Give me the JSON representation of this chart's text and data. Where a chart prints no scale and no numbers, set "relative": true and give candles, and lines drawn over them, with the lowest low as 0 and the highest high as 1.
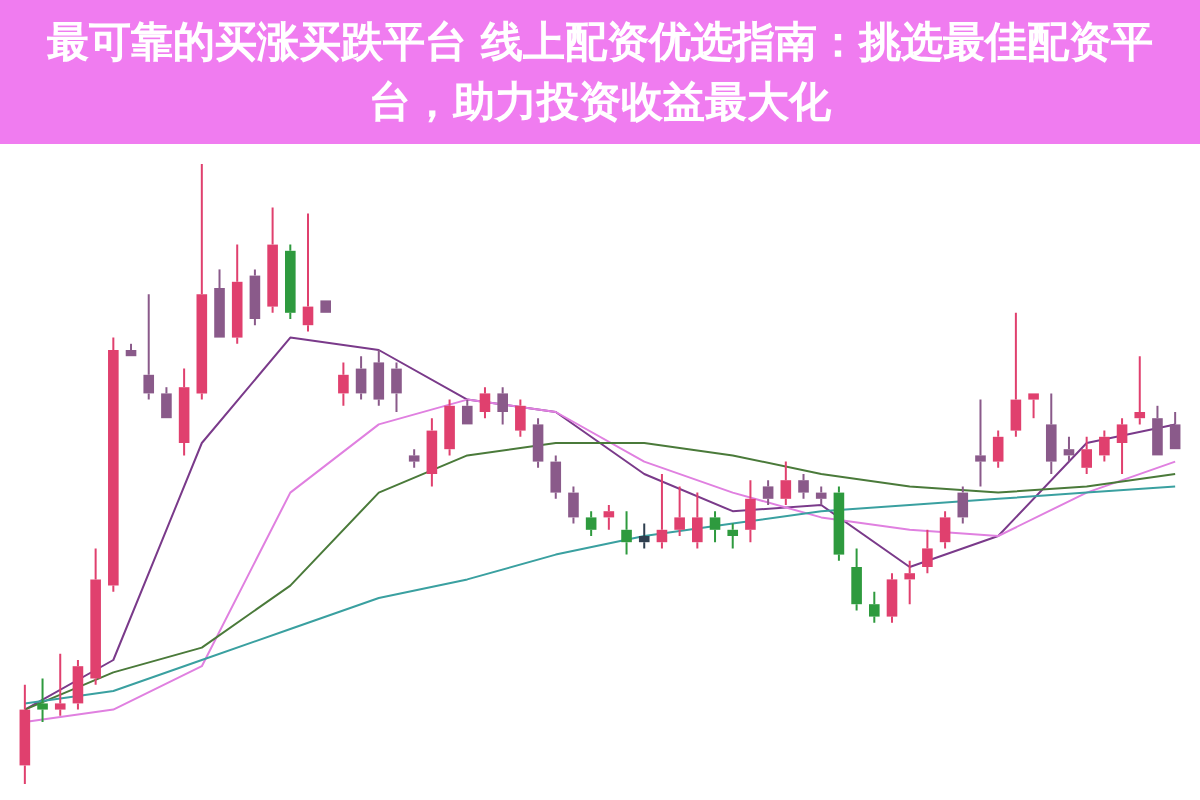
{
  "chart_data": {
    "type": "candlestick",
    "title": "最可靠的买涨买跌平台 线上配资优选指南：挑选最佳配资平台，助力投资收益最大化",
    "relative": true,
    "categories": [
      null,
      null,
      null,
      null,
      null,
      null,
      null,
      null,
      null,
      null,
      null,
      null,
      null,
      null,
      null,
      null,
      null,
      null,
      null,
      null,
      null,
      null,
      null,
      null,
      null,
      null,
      null,
      null,
      null,
      null,
      null,
      null,
      null,
      null,
      null,
      null,
      null,
      null,
      null,
      null,
      null,
      null,
      null,
      null,
      null,
      null,
      null,
      null,
      null,
      null,
      null,
      null,
      null,
      null,
      null,
      null,
      null,
      null,
      null,
      null,
      null,
      null,
      null,
      null,
      null,
      null
    ],
    "ohlc": [
      [
        0.03,
        0.16,
        0,
        0.12
      ],
      [
        0.13,
        0.17,
        0.1,
        0.12
      ],
      [
        0.12,
        0.21,
        0.11,
        0.13
      ],
      [
        0.13,
        0.2,
        0.12,
        0.19
      ],
      [
        0.17,
        0.38,
        0.16,
        0.33
      ],
      [
        0.32,
        0.72,
        0.31,
        0.7
      ],
      [
        0.7,
        0.71,
        0.69,
        0.69
      ],
      [
        0.66,
        0.79,
        0.62,
        0.63
      ],
      [
        0.63,
        0.64,
        0.59,
        0.59
      ],
      [
        0.55,
        0.67,
        0.53,
        0.64
      ],
      [
        0.63,
        1,
        0.62,
        0.79
      ],
      [
        0.8,
        0.83,
        0.72,
        0.72
      ],
      [
        0.72,
        0.87,
        0.71,
        0.81
      ],
      [
        0.82,
        0.83,
        0.74,
        0.75
      ],
      [
        0.77,
        0.93,
        0.76,
        0.87
      ],
      [
        0.86,
        0.87,
        0.75,
        0.76
      ],
      [
        0.74,
        0.92,
        0.73,
        0.77
      ],
      [
        0.78,
        0.78,
        0.76,
        0.76
      ],
      [
        0.63,
        0.68,
        0.61,
        0.66
      ],
      [
        0.67,
        0.69,
        0.62,
        0.63
      ],
      [
        0.68,
        0.7,
        0.61,
        0.62
      ],
      [
        0.67,
        0.68,
        0.6,
        0.63
      ],
      [
        0.53,
        0.54,
        0.51,
        0.52
      ],
      [
        0.5,
        0.59,
        0.48,
        0.57
      ],
      [
        0.54,
        0.62,
        0.53,
        0.61
      ],
      [
        0.61,
        0.62,
        0.58,
        0.58
      ],
      [
        0.6,
        0.64,
        0.59,
        0.63
      ],
      [
        0.63,
        0.64,
        0.58,
        0.6
      ],
      [
        0.57,
        0.62,
        0.56,
        0.61
      ],
      [
        0.58,
        0.59,
        0.51,
        0.52
      ],
      [
        0.52,
        0.53,
        0.46,
        0.47
      ],
      [
        0.47,
        0.48,
        0.42,
        0.43
      ],
      [
        0.43,
        0.44,
        0.4,
        0.41
      ],
      [
        0.43,
        0.45,
        0.41,
        0.44
      ],
      [
        0.41,
        0.44,
        0.37,
        0.39
      ],
      [
        0.4,
        0.42,
        0.38,
        0.39
      ],
      [
        0.39,
        0.5,
        0.38,
        0.41
      ],
      [
        0.41,
        0.48,
        0.4,
        0.43
      ],
      [
        0.39,
        0.47,
        0.38,
        0.43
      ],
      [
        0.43,
        0.44,
        0.39,
        0.41
      ],
      [
        0.41,
        0.42,
        0.38,
        0.4
      ],
      [
        0.41,
        0.49,
        0.39,
        0.46
      ],
      [
        0.48,
        0.49,
        0.45,
        0.46
      ],
      [
        0.46,
        0.52,
        0.45,
        0.49
      ],
      [
        0.49,
        0.5,
        0.46,
        0.47
      ],
      [
        0.47,
        0.48,
        0.45,
        0.46
      ],
      [
        0.47,
        0.48,
        0.36,
        0.37
      ],
      [
        0.35,
        0.38,
        0.28,
        0.29
      ],
      [
        0.29,
        0.31,
        0.26,
        0.27
      ],
      [
        0.27,
        0.34,
        0.26,
        0.33
      ],
      [
        0.33,
        0.36,
        0.29,
        0.34
      ],
      [
        0.35,
        0.41,
        0.34,
        0.38
      ],
      [
        0.39,
        0.44,
        0.38,
        0.43
      ],
      [
        0.47,
        0.48,
        0.42,
        0.43
      ],
      [
        0.53,
        0.62,
        0.48,
        0.52
      ],
      [
        0.52,
        0.57,
        0.51,
        0.56
      ],
      [
        0.57,
        0.76,
        0.56,
        0.62
      ],
      [
        0.62,
        0.63,
        0.59,
        0.63
      ],
      [
        0.58,
        0.63,
        0.5,
        0.52
      ],
      [
        0.54,
        0.56,
        0.52,
        0.53
      ],
      [
        0.51,
        0.56,
        0.5,
        0.54
      ],
      [
        0.53,
        0.57,
        0.52,
        0.56
      ],
      [
        0.55,
        0.59,
        0.5,
        0.58
      ],
      [
        0.59,
        0.69,
        0.58,
        0.6
      ],
      [
        0.59,
        0.61,
        0.53,
        0.53
      ],
      [
        0.58,
        0.6,
        0.54,
        0.54
      ]
    ],
    "colors": [
      "#e0406e",
      "#2e9a3e",
      "#e0406e",
      "#e0406e",
      "#e0406e",
      "#e0406e",
      "#8a5a8a",
      "#8a5a8a",
      "#8a5a8a",
      "#e0406e",
      "#e0406e",
      "#8a5a8a",
      "#e0406e",
      "#8a5a8a",
      "#e0406e",
      "#2e9a3e",
      "#e0406e",
      "#8a5a8a",
      "#e0406e",
      "#8a5a8a",
      "#8a5a8a",
      "#8a5a8a",
      "#8a5a8a",
      "#e0406e",
      "#e0406e",
      "#8a5a8a",
      "#e0406e",
      "#8a5a8a",
      "#e0406e",
      "#8a5a8a",
      "#8a5a8a",
      "#8a5a8a",
      "#2e9a3e",
      "#e0406e",
      "#2e9a3e",
      "#2f3f4f",
      "#e0406e",
      "#e0406e",
      "#e0406e",
      "#2e9a3e",
      "#2e9a3e",
      "#e0406e",
      "#8a5a8a",
      "#e0406e",
      "#8a5a8a",
      "#8a5a8a",
      "#2e9a3e",
      "#2e9a3e",
      "#2e9a3e",
      "#e0406e",
      "#e0406e",
      "#e0406e",
      "#e0406e",
      "#8a5a8a",
      "#8a5a8a",
      "#e0406e",
      "#e0406e",
      "#e0406e",
      "#8a5a8a",
      "#8a5a8a",
      "#e0406e",
      "#e0406e",
      "#e0406e",
      "#e0406e",
      "#8a5a8a",
      "#8a5a8a"
    ],
    "series": [
      {
        "type": "line",
        "color": "#3aa0a0",
        "values": [
          0.13,
          null,
          null,
          null,
          null,
          0.15,
          null,
          null,
          null,
          null,
          0.2,
          null,
          null,
          null,
          null,
          0.25,
          null,
          null,
          null,
          null,
          0.3,
          null,
          null,
          null,
          null,
          0.33,
          null,
          null,
          null,
          null,
          0.37,
          null,
          null,
          null,
          null,
          0.4,
          null,
          null,
          null,
          null,
          0.42,
          null,
          null,
          null,
          null,
          0.44,
          null,
          null,
          null,
          null,
          0.45,
          null,
          null,
          null,
          null,
          0.46,
          null,
          null,
          null,
          null,
          0.47,
          null,
          null,
          null,
          null,
          0.48
        ]
      },
      {
        "type": "line",
        "color": "#4a7a3a",
        "values": [
          0.12,
          null,
          null,
          null,
          null,
          0.18,
          null,
          null,
          null,
          null,
          0.22,
          null,
          null,
          null,
          null,
          0.32,
          null,
          null,
          null,
          null,
          0.47,
          null,
          null,
          null,
          null,
          0.53,
          null,
          null,
          null,
          null,
          0.55,
          null,
          null,
          null,
          null,
          0.55,
          null,
          null,
          null,
          null,
          0.53,
          null,
          null,
          null,
          null,
          0.5,
          null,
          null,
          null,
          null,
          0.48,
          null,
          null,
          null,
          null,
          0.47,
          null,
          null,
          null,
          null,
          0.48,
          null,
          null,
          null,
          null,
          0.5
        ]
      },
      {
        "type": "line",
        "color": "#e080e0",
        "values": [
          0.1,
          null,
          null,
          null,
          null,
          0.12,
          null,
          null,
          null,
          null,
          0.19,
          null,
          null,
          null,
          null,
          0.47,
          null,
          null,
          null,
          null,
          0.58,
          null,
          null,
          null,
          null,
          0.62,
          null,
          null,
          null,
          null,
          0.6,
          null,
          null,
          null,
          null,
          0.52,
          null,
          null,
          null,
          null,
          0.47,
          null,
          null,
          null,
          null,
          0.43,
          null,
          null,
          null,
          null,
          0.41,
          null,
          null,
          null,
          null,
          0.4,
          null,
          null,
          null,
          null,
          0.47,
          null,
          null,
          null,
          null,
          0.52
        ]
      },
      {
        "type": "line",
        "color": "#7a3a8a",
        "values": [
          0.12,
          null,
          null,
          null,
          null,
          0.2,
          null,
          null,
          null,
          null,
          0.55,
          null,
          null,
          null,
          null,
          0.72,
          null,
          null,
          null,
          null,
          0.7,
          null,
          null,
          null,
          null,
          0.62,
          null,
          null,
          null,
          null,
          0.6,
          null,
          null,
          null,
          null,
          0.5,
          null,
          null,
          null,
          null,
          0.44,
          null,
          null,
          null,
          null,
          0.45,
          null,
          null,
          null,
          null,
          0.35,
          null,
          null,
          null,
          null,
          0.4,
          null,
          null,
          null,
          null,
          0.55,
          null,
          null,
          null,
          null,
          0.58
        ]
      }
    ]
  }
}
